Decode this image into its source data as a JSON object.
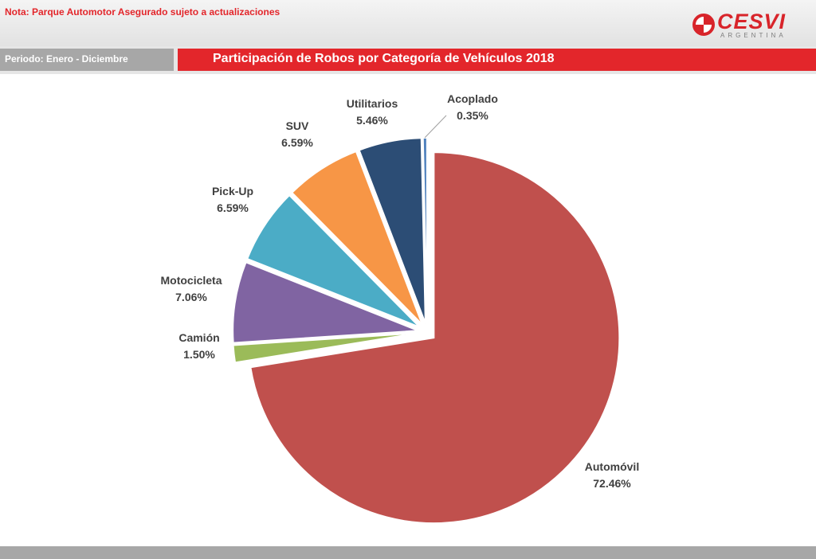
{
  "note": "Nota: Parque Automotor Asegurado sujeto a actualizaciones",
  "logo": {
    "brand": "CESVI",
    "sub": "ARGENTINA"
  },
  "period_label": "Periodo: Enero - Diciembre",
  "colors": {
    "accent": "#e3262b",
    "gray": "#a7a7a7"
  },
  "chart_data": {
    "type": "pie",
    "title": "Participación  de Robos por Categoría de Vehículos  2018",
    "slices": [
      {
        "label": "Automóvil",
        "value": 72.46,
        "display": "72.46%",
        "color": "#c0504d"
      },
      {
        "label": "Camión",
        "value": 1.5,
        "display": "1.50%",
        "color": "#9bbb59"
      },
      {
        "label": "Motocicleta",
        "value": 7.06,
        "display": "7.06%",
        "color": "#8064a2"
      },
      {
        "label": "Pick-Up",
        "value": 6.59,
        "display": "6.59%",
        "color": "#4bacc6"
      },
      {
        "label": "SUV",
        "value": 6.59,
        "display": "6.59%",
        "color": "#f79646"
      },
      {
        "label": "Utilitarios",
        "value": 5.46,
        "display": "5.46%",
        "color": "#2c4d75"
      },
      {
        "label": "Acoplado",
        "value": 0.35,
        "display": "0.35%",
        "color": "#4f81bd"
      }
    ]
  }
}
